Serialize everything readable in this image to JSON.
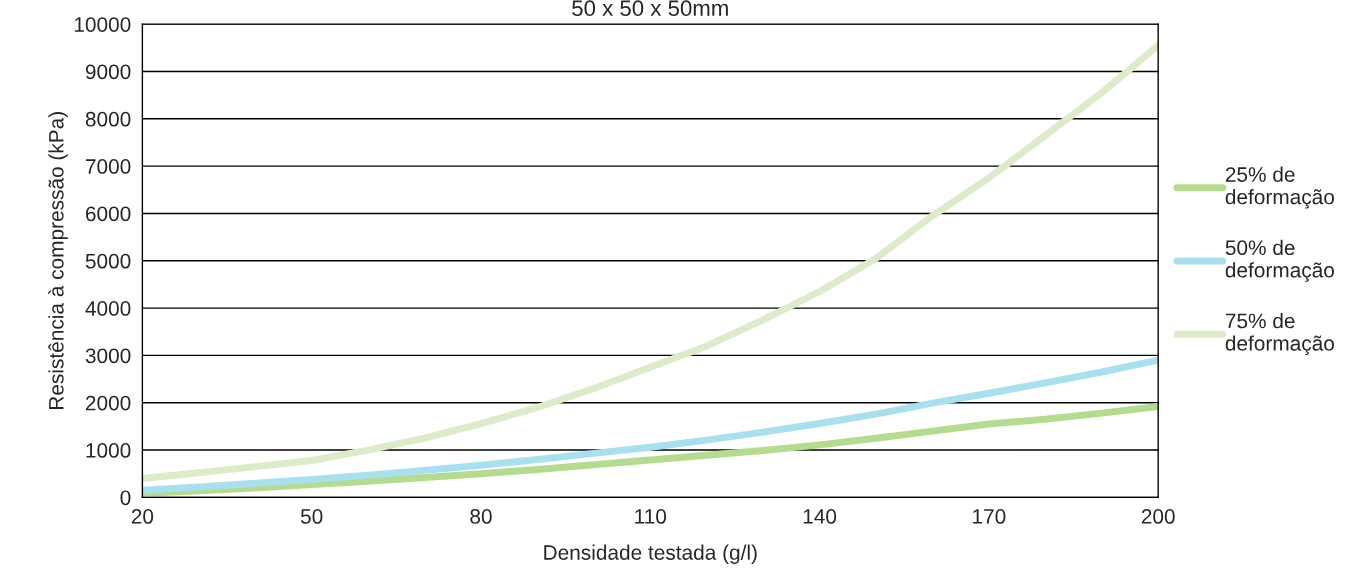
{
  "chart_data": {
    "type": "line",
    "title": "50 x 50 x 50mm",
    "xlabel": "Densidade testada (g/l)",
    "ylabel": "Resistência à compressão (kPa)",
    "x": [
      20,
      30,
      40,
      50,
      60,
      70,
      80,
      90,
      100,
      110,
      120,
      130,
      140,
      150,
      160,
      170,
      180,
      190,
      200
    ],
    "series": [
      {
        "name": "25% de deformação",
        "color": "#b5dc8e",
        "values": [
          80,
          140,
          200,
          270,
          340,
          420,
          500,
          590,
          690,
          790,
          890,
          990,
          1110,
          1250,
          1400,
          1550,
          1650,
          1780,
          1920
        ]
      },
      {
        "name": "50% de deformação",
        "color": "#a9e0f0",
        "values": [
          150,
          220,
          300,
          380,
          470,
          570,
          680,
          800,
          930,
          1060,
          1210,
          1380,
          1560,
          1760,
          1990,
          2200,
          2420,
          2650,
          2900
        ]
      },
      {
        "name": "75% de deformação",
        "color": "#dcecc8",
        "values": [
          400,
          520,
          650,
          780,
          1000,
          1250,
          1560,
          1900,
          2300,
          2750,
          3200,
          3750,
          4350,
          5050,
          5950,
          6750,
          7650,
          8550,
          9550
        ]
      }
    ],
    "xlim": [
      20,
      200
    ],
    "xticks": [
      20,
      50,
      80,
      110,
      140,
      170,
      200
    ],
    "ylim": [
      0,
      10000
    ],
    "yticks": [
      0,
      1000,
      2000,
      3000,
      4000,
      5000,
      6000,
      7000,
      8000,
      9000,
      10000
    ],
    "grid": "y",
    "legend": "right",
    "line_style": "solid",
    "marker": "none"
  }
}
